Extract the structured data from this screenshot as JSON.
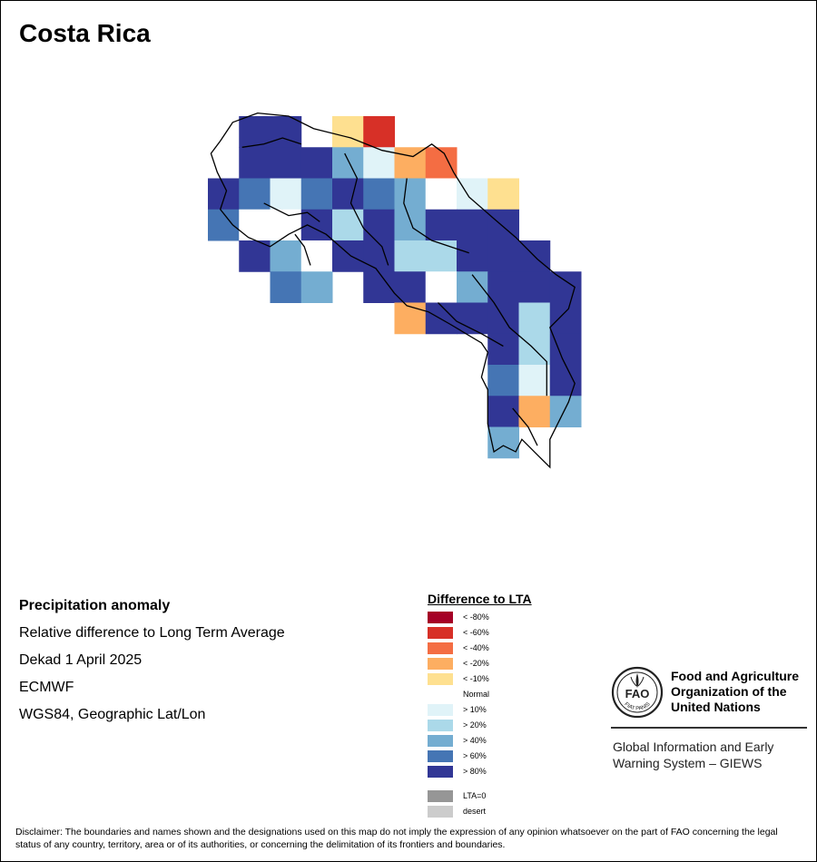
{
  "title": "Costa Rica",
  "info": {
    "heading": "Precipitation anomaly",
    "line1": "Relative difference to Long Term Average",
    "line2": "Dekad 1 April 2025",
    "line3": "ECMWF",
    "line4": "WGS84, Geographic Lat/Lon"
  },
  "legend": {
    "title": "Difference to LTA",
    "items": [
      {
        "label": "< -80%",
        "color": "#a50026"
      },
      {
        "label": "< -60%",
        "color": "#d73027"
      },
      {
        "label": "< -40%",
        "color": "#f46d43"
      },
      {
        "label": "< -20%",
        "color": "#fdae61"
      },
      {
        "label": "< -10%",
        "color": "#fee090"
      },
      {
        "label": "Normal",
        "color": "#ffffff"
      },
      {
        "label": "> 10%",
        "color": "#e0f3f8"
      },
      {
        "label": "> 20%",
        "color": "#abd9e9"
      },
      {
        "label": "> 40%",
        "color": "#74add1"
      },
      {
        "label": "> 60%",
        "color": "#4575b4"
      },
      {
        "label": "> 80%",
        "color": "#313695"
      }
    ],
    "extra": [
      {
        "label": "LTA=0",
        "color": "#969696"
      },
      {
        "label": "desert",
        "color": "#cccccc"
      }
    ]
  },
  "fao": {
    "name": "Food and Agriculture Organization of the United Nations",
    "giews": "Global Information and Early Warning System – GIEWS",
    "logo_text": "FAO",
    "logo_motto": "FIAT PANIS"
  },
  "disclaimer": "Disclaimer: The boundaries and names shown and the designations used on this map do not imply the expression of any opinion whatsoever on the part of FAO concerning the legal status of any country, territory, area or of its authorities, or concerning the delimitation of its frontiers and boundaries.",
  "grid_cells": [
    {
      "lon": -85.75,
      "lat": 11.25,
      "c": 10
    },
    {
      "lon": -85.25,
      "lat": 11.25,
      "c": 10
    },
    {
      "lon": -84.25,
      "lat": 11.25,
      "c": 4
    },
    {
      "lon": -83.75,
      "lat": 11.25,
      "c": 1
    },
    {
      "lon": -85.75,
      "lat": 10.75,
      "c": 10
    },
    {
      "lon": -85.25,
      "lat": 10.75,
      "c": 10
    },
    {
      "lon": -84.75,
      "lat": 10.75,
      "c": 10
    },
    {
      "lon": -84.25,
      "lat": 10.75,
      "c": 8
    },
    {
      "lon": -83.75,
      "lat": 10.75,
      "c": 6
    },
    {
      "lon": -83.25,
      "lat": 10.75,
      "c": 3
    },
    {
      "lon": -82.75,
      "lat": 10.75,
      "c": 2
    },
    {
      "lon": -86.25,
      "lat": 10.25,
      "c": 10
    },
    {
      "lon": -85.75,
      "lat": 10.25,
      "c": 9
    },
    {
      "lon": -85.25,
      "lat": 10.25,
      "c": 6
    },
    {
      "lon": -84.75,
      "lat": 10.25,
      "c": 9
    },
    {
      "lon": -84.25,
      "lat": 10.25,
      "c": 10
    },
    {
      "lon": -83.75,
      "lat": 10.25,
      "c": 9
    },
    {
      "lon": -83.25,
      "lat": 10.25,
      "c": 8
    },
    {
      "lon": -82.75,
      "lat": 10.25,
      "c": 5
    },
    {
      "lon": -82.25,
      "lat": 10.25,
      "c": 6
    },
    {
      "lon": -81.75,
      "lat": 10.25,
      "c": 4
    },
    {
      "lon": -86.25,
      "lat": 9.75,
      "c": 9
    },
    {
      "lon": -85.75,
      "lat": 9.75,
      "c": 5
    },
    {
      "lon": -85.25,
      "lat": 9.75,
      "c": 5
    },
    {
      "lon": -84.75,
      "lat": 9.75,
      "c": 10
    },
    {
      "lon": -84.25,
      "lat": 9.75,
      "c": 7
    },
    {
      "lon": -83.75,
      "lat": 9.75,
      "c": 10
    },
    {
      "lon": -83.25,
      "lat": 9.75,
      "c": 8
    },
    {
      "lon": -82.75,
      "lat": 9.75,
      "c": 10
    },
    {
      "lon": -82.25,
      "lat": 9.75,
      "c": 10
    },
    {
      "lon": -81.75,
      "lat": 9.75,
      "c": 10
    },
    {
      "lon": -85.75,
      "lat": 9.25,
      "c": 10
    },
    {
      "lon": -85.25,
      "lat": 9.25,
      "c": 8
    },
    {
      "lon": -84.75,
      "lat": 9.25,
      "c": 5
    },
    {
      "lon": -84.25,
      "lat": 9.25,
      "c": 10
    },
    {
      "lon": -83.75,
      "lat": 9.25,
      "c": 10
    },
    {
      "lon": -83.25,
      "lat": 9.25,
      "c": 7
    },
    {
      "lon": -82.75,
      "lat": 9.25,
      "c": 7
    },
    {
      "lon": -82.25,
      "lat": 9.25,
      "c": 10
    },
    {
      "lon": -81.75,
      "lat": 9.25,
      "c": 10
    },
    {
      "lon": -81.25,
      "lat": 9.25,
      "c": 10
    },
    {
      "lon": -85.25,
      "lat": 8.75,
      "c": 9
    },
    {
      "lon": -84.75,
      "lat": 8.75,
      "c": 8
    },
    {
      "lon": -83.75,
      "lat": 8.75,
      "c": 10
    },
    {
      "lon": -83.25,
      "lat": 8.75,
      "c": 10
    },
    {
      "lon": -82.75,
      "lat": 8.75,
      "c": 5
    },
    {
      "lon": -82.25,
      "lat": 8.75,
      "c": 8
    },
    {
      "lon": -81.75,
      "lat": 8.75,
      "c": 10
    },
    {
      "lon": -81.25,
      "lat": 8.75,
      "c": 10
    },
    {
      "lon": -80.75,
      "lat": 8.75,
      "c": 10
    },
    {
      "lon": -83.25,
      "lat": 8.25,
      "c": 3
    },
    {
      "lon": -82.75,
      "lat": 8.25,
      "c": 10
    },
    {
      "lon": -82.25,
      "lat": 8.25,
      "c": 10
    },
    {
      "lon": -81.75,
      "lat": 8.25,
      "c": 10
    },
    {
      "lon": -81.25,
      "lat": 8.25,
      "c": 7
    },
    {
      "lon": -80.75,
      "lat": 8.25,
      "c": 10
    },
    {
      "lon": -81.75,
      "lat": 7.75,
      "c": 10
    },
    {
      "lon": -81.25,
      "lat": 7.75,
      "c": 7
    },
    {
      "lon": -80.75,
      "lat": 7.75,
      "c": 10
    },
    {
      "lon": -81.75,
      "lat": 7.25,
      "c": 9
    },
    {
      "lon": -81.25,
      "lat": 7.25,
      "c": 6
    },
    {
      "lon": -80.75,
      "lat": 7.25,
      "c": 10
    },
    {
      "lon": -81.75,
      "lat": 6.75,
      "c": 10
    },
    {
      "lon": -81.25,
      "lat": 6.75,
      "c": 3
    },
    {
      "lon": -80.75,
      "lat": 6.75,
      "c": 8
    },
    {
      "lon": -81.75,
      "lat": 6.25,
      "c": 8
    }
  ],
  "borders": {
    "country_outline": [
      [
        -86.1,
        11.4
      ],
      [
        -85.7,
        11.55
      ],
      [
        -85.2,
        11.5
      ],
      [
        -84.8,
        11.3
      ],
      [
        -84.2,
        11.15
      ],
      [
        -83.7,
        10.95
      ],
      [
        -83.2,
        10.85
      ],
      [
        -82.9,
        11.05
      ],
      [
        -82.7,
        10.9
      ],
      [
        -82.55,
        10.6
      ],
      [
        -82.3,
        10.2
      ],
      [
        -81.9,
        9.85
      ],
      [
        -81.55,
        9.55
      ],
      [
        -81.2,
        9.2
      ],
      [
        -80.9,
        8.95
      ],
      [
        -80.6,
        8.75
      ],
      [
        -80.7,
        8.4
      ],
      [
        -81.0,
        8.1
      ],
      [
        -80.8,
        7.6
      ],
      [
        -80.6,
        7.2
      ],
      [
        -80.7,
        6.9
      ],
      [
        -81.0,
        6.3
      ],
      [
        -81.0,
        5.85
      ],
      [
        -81.2,
        6.05
      ],
      [
        -81.45,
        6.3
      ],
      [
        -81.55,
        6.1
      ],
      [
        -81.75,
        6.2
      ],
      [
        -81.9,
        6.1
      ],
      [
        -82.0,
        6.55
      ],
      [
        -82.0,
        6.85
      ],
      [
        -82.0,
        7.1
      ],
      [
        -82.1,
        7.3
      ],
      [
        -82.0,
        7.7
      ],
      [
        -82.1,
        7.85
      ],
      [
        -82.6,
        8.15
      ],
      [
        -82.95,
        8.35
      ],
      [
        -83.3,
        8.45
      ],
      [
        -83.5,
        8.65
      ],
      [
        -83.8,
        9.05
      ],
      [
        -84.2,
        9.25
      ],
      [
        -84.6,
        9.6
      ],
      [
        -84.9,
        9.75
      ],
      [
        -85.2,
        9.6
      ],
      [
        -85.5,
        9.4
      ],
      [
        -85.85,
        9.55
      ],
      [
        -86.1,
        9.75
      ],
      [
        -86.3,
        10.0
      ],
      [
        -86.2,
        10.3
      ],
      [
        -86.35,
        10.6
      ],
      [
        -86.45,
        10.9
      ],
      [
        -86.3,
        11.1
      ],
      [
        -86.1,
        11.4
      ]
    ],
    "internal_lines": [
      [
        [
          -85.95,
          11.0
        ],
        [
          -85.6,
          11.05
        ],
        [
          -85.3,
          11.15
        ],
        [
          -85.0,
          11.05
        ]
      ],
      [
        [
          -84.3,
          10.9
        ],
        [
          -84.1,
          10.5
        ],
        [
          -84.2,
          10.1
        ],
        [
          -84.0,
          9.7
        ],
        [
          -83.7,
          9.4
        ],
        [
          -83.6,
          9.1
        ]
      ],
      [
        [
          -83.3,
          10.5
        ],
        [
          -83.35,
          10.1
        ],
        [
          -83.2,
          9.7
        ],
        [
          -82.9,
          9.5
        ],
        [
          -82.3,
          9.3
        ]
      ],
      [
        [
          -85.6,
          10.1
        ],
        [
          -85.2,
          9.9
        ],
        [
          -84.9,
          9.95
        ],
        [
          -84.7,
          9.8
        ]
      ],
      [
        [
          -82.25,
          8.95
        ],
        [
          -81.9,
          8.5
        ],
        [
          -81.65,
          8.1
        ],
        [
          -81.3,
          7.8
        ],
        [
          -81.05,
          7.55
        ],
        [
          -81.05,
          7.0
        ]
      ],
      [
        [
          -82.8,
          8.5
        ],
        [
          -82.5,
          8.2
        ],
        [
          -82.1,
          8.0
        ],
        [
          -81.75,
          7.8
        ]
      ],
      [
        [
          -81.6,
          6.8
        ],
        [
          -81.35,
          6.5
        ],
        [
          -81.2,
          6.2
        ]
      ],
      [
        [
          -85.1,
          9.6
        ],
        [
          -84.95,
          9.4
        ],
        [
          -84.85,
          9.1
        ]
      ]
    ]
  }
}
